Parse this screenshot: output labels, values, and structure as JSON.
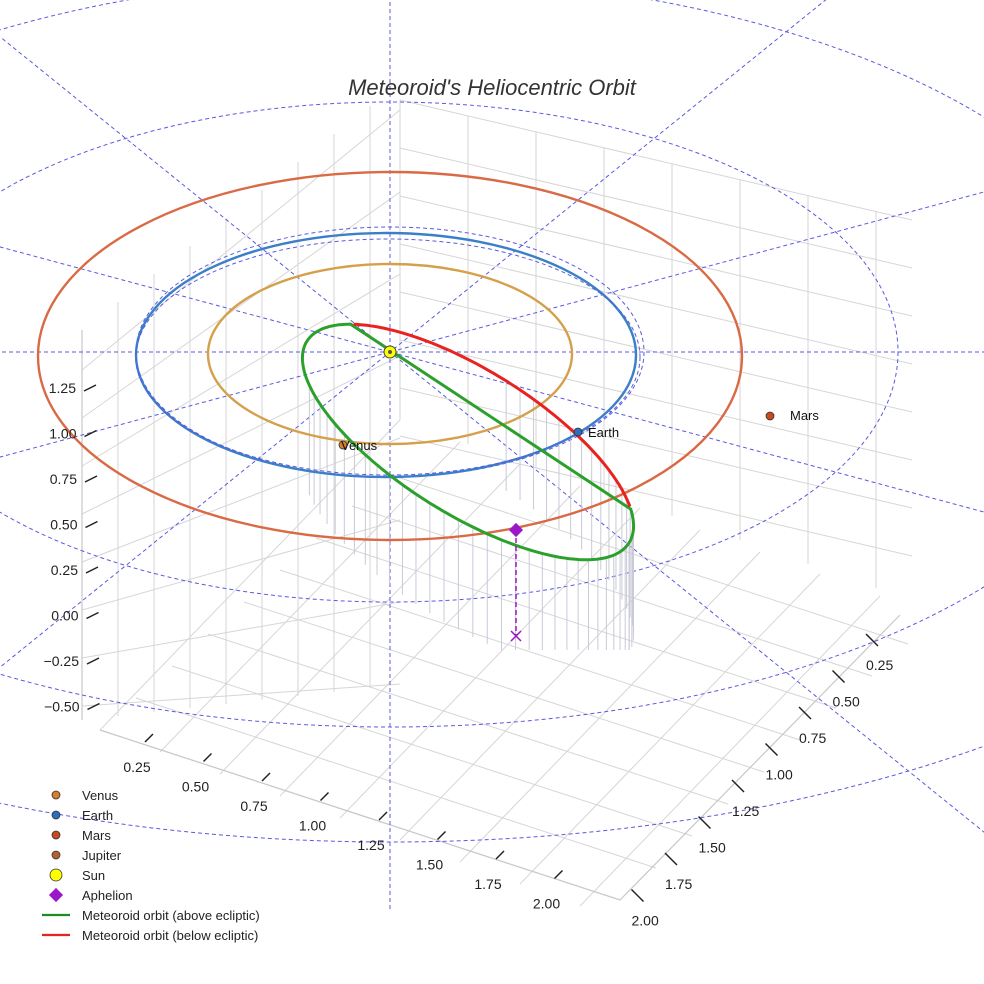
{
  "chart_data": {
    "type": "scatter",
    "title": "Meteoroid's Heliocentric Orbit",
    "axes": {
      "x": {
        "ticks": [
          "0.25",
          "0.50",
          "0.75",
          "1.00",
          "1.25",
          "1.50",
          "1.75",
          "2.00"
        ]
      },
      "y": {
        "ticks": [
          "0.25",
          "0.50",
          "0.75",
          "1.00",
          "1.25",
          "1.50",
          "1.75",
          "2.00"
        ]
      },
      "z": {
        "ticks": [
          "1.25",
          "1.00",
          "0.75",
          "0.50",
          "0.25",
          "0.00",
          "−0.25",
          "−0.50"
        ]
      }
    },
    "planet_orbits": [
      {
        "name": "Venus",
        "radius_au": 0.72,
        "color": "#d4a04a"
      },
      {
        "name": "Earth",
        "radius_au": 1.0,
        "color": "#3a7fc8"
      },
      {
        "name": "Mars",
        "radius_au": 1.52,
        "color": "#d96a45"
      }
    ],
    "points": [
      {
        "name": "Sun",
        "label": "",
        "color": "#ffff00"
      },
      {
        "name": "Venus",
        "label": "Venus",
        "color": "#d4802a"
      },
      {
        "name": "Earth",
        "label": "Earth",
        "color": "#2a6fc0"
      },
      {
        "name": "Mars",
        "label": "Mars",
        "color": "#c94a20"
      }
    ],
    "meteoroid_orbit": {
      "above_color": "#2ca02c",
      "below_color": "#e8231f"
    },
    "aphelion": {
      "name": "Aphelion",
      "color": "#9b17c8"
    },
    "legend": [
      {
        "label": "Venus",
        "marker": "circle",
        "color": "#d4802a"
      },
      {
        "label": "Earth",
        "marker": "circle",
        "color": "#2a6fc0"
      },
      {
        "label": "Mars",
        "marker": "circle",
        "color": "#c94a20"
      },
      {
        "label": "Jupiter",
        "marker": "circle",
        "color": "#b5602e"
      },
      {
        "label": "Sun",
        "marker": "circle",
        "color": "#ffff00"
      },
      {
        "label": "Aphelion",
        "marker": "diamond",
        "color": "#9b17c8"
      },
      {
        "label": "Meteoroid orbit (above ecliptic)",
        "marker": "line",
        "color": "#1e8c1e"
      },
      {
        "label": "Meteoroid orbit (below ecliptic)",
        "marker": "line",
        "color": "#e8231f"
      }
    ]
  }
}
